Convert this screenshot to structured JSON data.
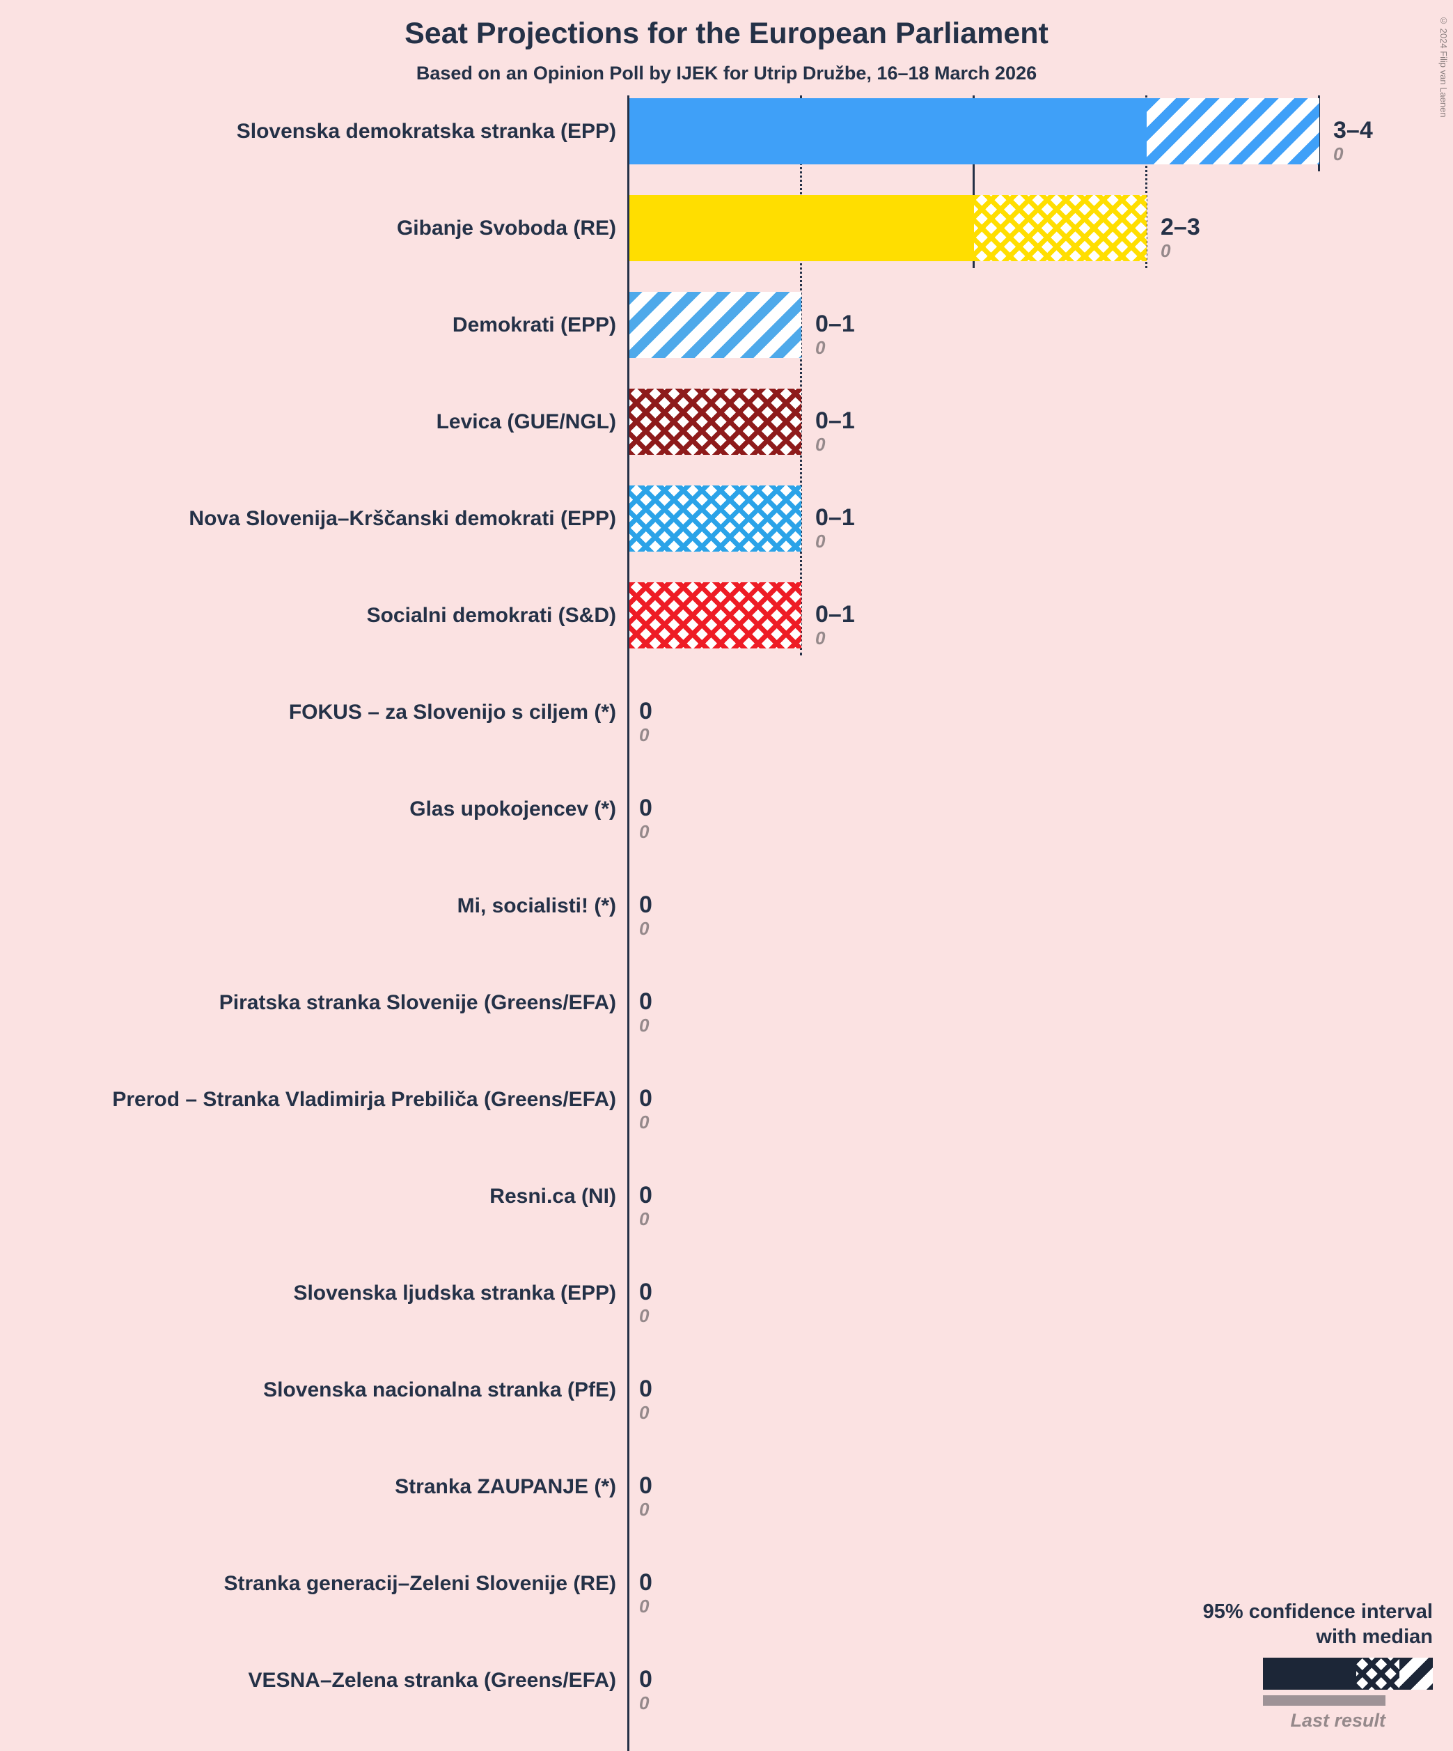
{
  "title": "Seat Projections for the European Parliament",
  "subtitle": "Based on an Opinion Poll by IJEK for Utrip Družbe, 16–18 March 2026",
  "copyright": "© 2024 Filip van Laenen",
  "colors": {
    "background": "#FBE2E2",
    "ink": "#243147",
    "muted_gray": "#95898B",
    "last_result_bar": "#9E9296",
    "legend_dark": "#1C2637"
  },
  "legend": {
    "ci_line1": "95% confidence interval",
    "ci_line2": "with median",
    "last_result": "Last result"
  },
  "chart_data": {
    "type": "bar",
    "title": "Seat Projections for the European Parliament",
    "subtitle": "Based on an Opinion Poll by IJEK for Utrip Družbe, 16–18 March 2026",
    "x_axis": {
      "min": 0,
      "max": 4,
      "unit": "seats"
    },
    "legend_position": "bottom-right",
    "gridlines": [
      {
        "seats": 1,
        "style": "dotted",
        "until_row": 6
      },
      {
        "seats": 2,
        "style": "solid",
        "until_row": 2
      },
      {
        "seats": 3,
        "style": "dotted",
        "until_row": 2
      },
      {
        "seats": 4,
        "style": "solid",
        "until_row": 1
      }
    ],
    "parties": [
      {
        "name": "Slovenska demokratska stranka (EPP)",
        "ci": "3–4",
        "low": 3,
        "high": 4,
        "last": "0",
        "color": "#3FA0F8",
        "hatch": "diagonal"
      },
      {
        "name": "Gibanje Svoboda (RE)",
        "ci": "2–3",
        "low": 2,
        "high": 3,
        "last": "0",
        "color": "#FFDE00",
        "hatch": "cross"
      },
      {
        "name": "Demokrati (EPP)",
        "ci": "0–1",
        "low": 0,
        "high": 1,
        "last": "0",
        "color": "#4EA9EA",
        "hatch": "diagonal"
      },
      {
        "name": "Levica (GUE/NGL)",
        "ci": "0–1",
        "low": 0,
        "high": 1,
        "last": "0",
        "color": "#8E1B1B",
        "hatch": "cross"
      },
      {
        "name": "Nova Slovenija–Krščanski demokrati (EPP)",
        "ci": "0–1",
        "low": 0,
        "high": 1,
        "last": "0",
        "color": "#2BA3E8",
        "hatch": "cross"
      },
      {
        "name": "Socialni demokrati (S&D)",
        "ci": "0–1",
        "low": 0,
        "high": 1,
        "last": "0",
        "color": "#EE1C25",
        "hatch": "cross"
      },
      {
        "name": "FOKUS – za Slovenijo s ciljem (*)",
        "ci": "0",
        "low": 0,
        "high": 0,
        "last": "0"
      },
      {
        "name": "Glas upokojencev (*)",
        "ci": "0",
        "low": 0,
        "high": 0,
        "last": "0"
      },
      {
        "name": "Mi, socialisti! (*)",
        "ci": "0",
        "low": 0,
        "high": 0,
        "last": "0"
      },
      {
        "name": "Piratska stranka Slovenije (Greens/EFA)",
        "ci": "0",
        "low": 0,
        "high": 0,
        "last": "0"
      },
      {
        "name": "Prerod – Stranka Vladimirja Prebiliča (Greens/EFA)",
        "ci": "0",
        "low": 0,
        "high": 0,
        "last": "0"
      },
      {
        "name": "Resni.ca (NI)",
        "ci": "0",
        "low": 0,
        "high": 0,
        "last": "0"
      },
      {
        "name": "Slovenska ljudska stranka (EPP)",
        "ci": "0",
        "low": 0,
        "high": 0,
        "last": "0"
      },
      {
        "name": "Slovenska nacionalna stranka (PfE)",
        "ci": "0",
        "low": 0,
        "high": 0,
        "last": "0"
      },
      {
        "name": "Stranka ZAUPANJE (*)",
        "ci": "0",
        "low": 0,
        "high": 0,
        "last": "0"
      },
      {
        "name": "Stranka generacij–Zeleni Slovenije (RE)",
        "ci": "0",
        "low": 0,
        "high": 0,
        "last": "0"
      },
      {
        "name": "VESNA–Zelena stranka (Greens/EFA)",
        "ci": "0",
        "low": 0,
        "high": 0,
        "last": "0"
      }
    ]
  }
}
